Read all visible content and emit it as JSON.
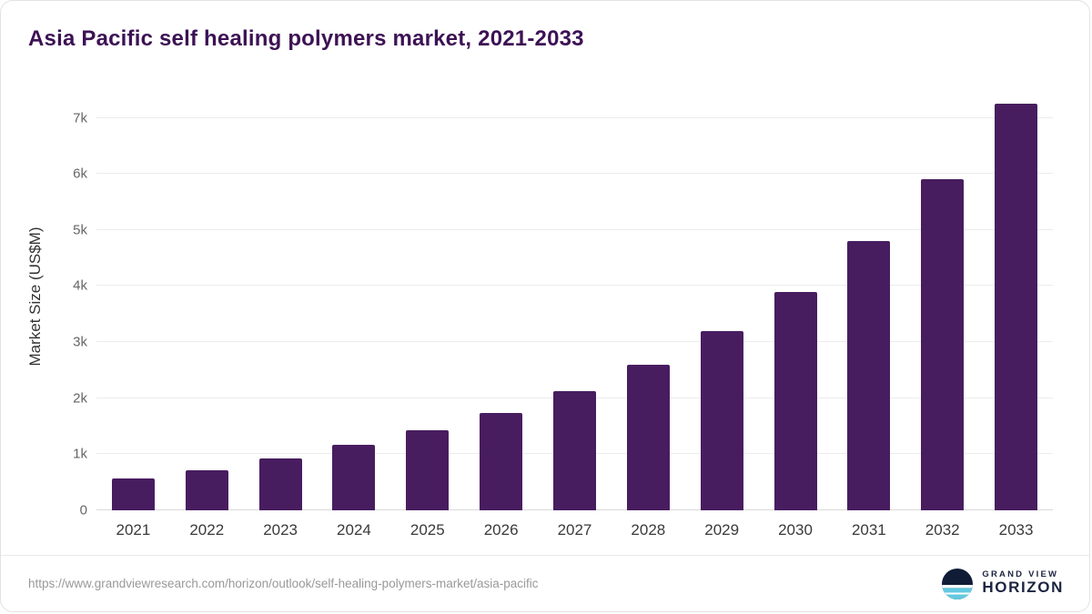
{
  "title": "Asia Pacific self healing polymers market, 2021-2033",
  "chart_data": {
    "type": "bar",
    "title": "Asia Pacific self healing polymers market, 2021-2033",
    "categories": [
      "2021",
      "2022",
      "2023",
      "2024",
      "2025",
      "2026",
      "2027",
      "2028",
      "2029",
      "2030",
      "2031",
      "2032",
      "2033"
    ],
    "values": [
      570,
      720,
      920,
      1170,
      1430,
      1740,
      2130,
      2600,
      3200,
      3900,
      4800,
      5900,
      7250
    ],
    "xlabel": "",
    "ylabel": "Market Size (US$M)",
    "ylim": [
      0,
      7300
    ],
    "yticks": [
      0,
      1000,
      2000,
      3000,
      4000,
      5000,
      6000,
      7000
    ],
    "ytick_labels": [
      "0",
      "1k",
      "2k",
      "3k",
      "4k",
      "5k",
      "6k",
      "7k"
    ],
    "grid": true,
    "legend": "none",
    "bar_color": "#481d60"
  },
  "footer": {
    "source_url": "https://www.grandviewresearch.com/horizon/outlook/self-healing-polymers-market/asia-pacific",
    "logo": {
      "line1": "GRAND VIEW",
      "line2": "HORIZON",
      "icon": "horizon-circle-icon",
      "icon_dark": "#101c36",
      "icon_blue": "#63c9e0"
    }
  },
  "colors": {
    "title": "#3d1254",
    "bar": "#481d60",
    "gridline": "#ececec",
    "tick_text": "#666666",
    "x_text": "#3a3a3a"
  }
}
